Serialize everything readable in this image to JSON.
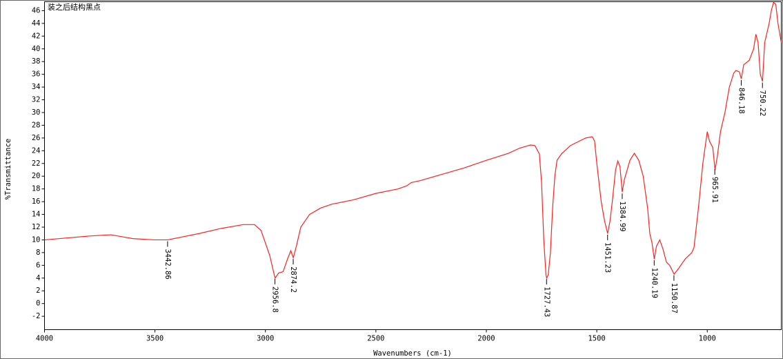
{
  "chart_data": {
    "type": "line",
    "title": "装之后结构黑点",
    "x_label": "Wavenumbers (cm-1)",
    "y_label": "%Transmittance",
    "color": "#ff2020",
    "xlim": [
      4000,
      665
    ],
    "ylim": [
      -4.1,
      47.4
    ],
    "xticks": [
      4000,
      3500,
      3000,
      2500,
      2000,
      1500,
      1000
    ],
    "yticks": [
      -2,
      0,
      2,
      4,
      6,
      8,
      10,
      12,
      14,
      16,
      18,
      20,
      22,
      24,
      26,
      28,
      30,
      32,
      34,
      36,
      38,
      40,
      42,
      44,
      46
    ],
    "x": [
      4000,
      3900,
      3800,
      3700,
      3650,
      3600,
      3500,
      3442,
      3400,
      3300,
      3200,
      3100,
      3050,
      3020,
      3000,
      2980,
      2960,
      2956,
      2940,
      2920,
      2900,
      2885,
      2874,
      2860,
      2840,
      2800,
      2750,
      2700,
      2600,
      2500,
      2400,
      2360,
      2340,
      2300,
      2200,
      2100,
      2000,
      1900,
      1850,
      1800,
      1780,
      1760,
      1750,
      1740,
      1730,
      1727,
      1720,
      1710,
      1700,
      1690,
      1680,
      1660,
      1620,
      1580,
      1550,
      1520,
      1510,
      1500,
      1480,
      1465,
      1451,
      1440,
      1430,
      1415,
      1405,
      1395,
      1385,
      1375,
      1350,
      1330,
      1310,
      1290,
      1270,
      1260,
      1250,
      1240,
      1230,
      1215,
      1200,
      1185,
      1170,
      1150,
      1130,
      1100,
      1070,
      1060,
      1040,
      1020,
      1000,
      990,
      975,
      965,
      955,
      940,
      920,
      900,
      880,
      870,
      855,
      846,
      835,
      810,
      790,
      780,
      770,
      760,
      750,
      740,
      720,
      710,
      700,
      690,
      680,
      670,
      665
    ],
    "values": [
      10.0,
      10.3,
      10.6,
      10.8,
      10.5,
      10.2,
      10.0,
      10.0,
      10.3,
      11.0,
      11.8,
      12.4,
      12.4,
      11.5,
      9.5,
      7.5,
      4.5,
      4.0,
      4.8,
      5.0,
      7.0,
      8.3,
      7.2,
      9.0,
      12.0,
      14.0,
      15.0,
      15.6,
      16.3,
      17.3,
      18.0,
      18.5,
      19.0,
      19.3,
      20.3,
      21.3,
      22.5,
      23.6,
      24.4,
      24.9,
      24.8,
      23.5,
      19,
      10,
      4.5,
      4.0,
      4.5,
      8,
      15,
      20,
      22.5,
      23.5,
      24.8,
      25.5,
      26.0,
      26.2,
      25.5,
      22,
      16,
      13,
      11.0,
      13,
      16,
      21,
      22.4,
      21.5,
      17.5,
      19.5,
      22.5,
      23.6,
      22.5,
      20,
      15,
      11,
      9.5,
      7.0,
      9,
      10.0,
      8.5,
      6.5,
      6.0,
      4.6,
      5.5,
      7.0,
      8.0,
      8.8,
      15,
      22,
      27.0,
      25.5,
      24.5,
      21.0,
      23,
      27,
      30,
      34,
      36.2,
      36.6,
      36.4,
      35.3,
      37.5,
      38.2,
      40,
      42.3,
      41,
      36,
      34.9,
      41,
      44,
      46,
      47.3,
      47,
      44,
      42,
      41
    ],
    "peaks": [
      3442.86,
      2956.8,
      2874.2,
      1727.43,
      1451.23,
      1384.99,
      1240.19,
      1150.87,
      965.91,
      846.18,
      750.22
    ]
  }
}
